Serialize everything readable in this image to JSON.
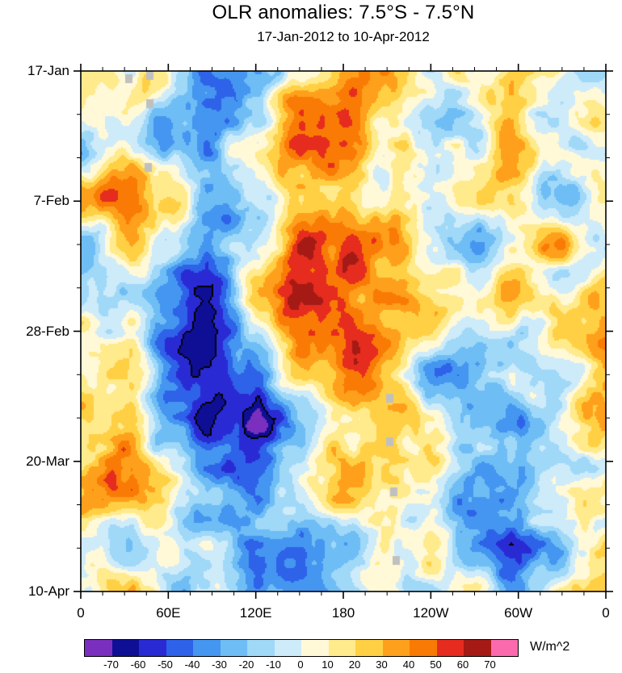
{
  "chart": {
    "title": "OLR anomalies: 7.5°S - 7.5°N",
    "subtitle": "17-Jan-2012 to 10-Apr-2012",
    "units_label": "W/m^2"
  },
  "chart_data": {
    "type": "heatmap",
    "title": "OLR anomalies: 7.5°S - 7.5°N",
    "subtitle": "17-Jan-2012 to 10-Apr-2012",
    "x_axis": {
      "label_ticks": [
        "0",
        "60E",
        "120E",
        "180",
        "120W",
        "60W",
        "0"
      ],
      "range_deg": [
        0,
        360
      ],
      "minor_tick_every_deg": 15
    },
    "y_axis": {
      "label_ticks": [
        "17-Jan",
        "7-Feb",
        "28-Feb",
        "20-Mar",
        "10-Apr"
      ],
      "range_days": [
        0,
        84
      ],
      "minor_tick_every_days": 7
    },
    "colorbar": {
      "levels": [
        -70,
        -60,
        -50,
        -40,
        -30,
        -20,
        -10,
        0,
        10,
        20,
        30,
        40,
        50,
        60,
        70
      ],
      "labels": [
        "-70",
        "-60",
        "-50",
        "-40",
        "-30",
        "-20",
        "-10",
        "0",
        "10",
        "20",
        "30",
        "40",
        "50",
        "60",
        "70"
      ],
      "colors": [
        "#7B2FBE",
        "#0F0F96",
        "#2A2AD4",
        "#2E62E8",
        "#4596F0",
        "#6FBDF5",
        "#A0D8F8",
        "#CEEBFA",
        "#FFF9D8",
        "#FFEA8C",
        "#FFD044",
        "#FFA01C",
        "#F97B06",
        "#E62C1E",
        "#A51A15",
        "#FC6AAE"
      ],
      "units": "W/m^2",
      "missing_color": "#C0C0C0"
    },
    "grid": {
      "comment_units": "W/m^2, values estimated from shading",
      "lons_deg": [
        0,
        30,
        60,
        90,
        120,
        150,
        180,
        210,
        240,
        270,
        300,
        330,
        360
      ],
      "times_days": [
        0,
        7,
        14,
        21,
        28,
        35,
        42,
        49,
        56,
        63,
        70,
        77,
        84
      ],
      "values": [
        [
          20,
          -10,
          10,
          -25,
          -30,
          30,
          45,
          15,
          -10,
          -10,
          15,
          -20,
          20
        ],
        [
          30,
          10,
          -20,
          -40,
          -20,
          40,
          50,
          20,
          -20,
          -15,
          25,
          -10,
          10
        ],
        [
          -10,
          20,
          -10,
          -30,
          10,
          45,
          40,
          20,
          -10,
          -20,
          30,
          10,
          -10
        ],
        [
          20,
          30,
          10,
          -25,
          -10,
          40,
          35,
          10,
          -25,
          -10,
          25,
          -15,
          15
        ],
        [
          -20,
          15,
          -10,
          -30,
          20,
          55,
          45,
          15,
          -15,
          -30,
          -10,
          20,
          -10
        ],
        [
          10,
          -20,
          -40,
          -50,
          10,
          50,
          40,
          20,
          -10,
          -20,
          15,
          -25,
          10
        ],
        [
          25,
          -10,
          -55,
          -65,
          -30,
          35,
          45,
          25,
          10,
          -15,
          -20,
          15,
          20
        ],
        [
          15,
          20,
          -45,
          -60,
          -40,
          20,
          35,
          20,
          -10,
          -25,
          10,
          -10,
          10
        ],
        [
          30,
          25,
          -30,
          -50,
          -45,
          -10,
          25,
          30,
          15,
          -20,
          -15,
          20,
          25
        ],
        [
          -10,
          30,
          -20,
          -40,
          -50,
          -20,
          15,
          25,
          20,
          -10,
          -25,
          -10,
          -15
        ],
        [
          20,
          15,
          10,
          -30,
          -45,
          -30,
          20,
          15,
          -15,
          -30,
          -20,
          15,
          20
        ],
        [
          15,
          -15,
          25,
          10,
          -50,
          -40,
          -10,
          20,
          10,
          -20,
          -35,
          -10,
          15
        ],
        [
          20,
          25,
          -10,
          15,
          -30,
          -45,
          -20,
          10,
          -10,
          15,
          -25,
          10,
          20
        ]
      ]
    },
    "missing_cells": [
      {
        "lon_frac": 0.09,
        "t_frac": 0.014
      },
      {
        "lon_frac": 0.131,
        "t_frac": 0.008
      },
      {
        "lon_frac": 0.131,
        "t_frac": 0.062
      },
      {
        "lon_frac": 0.128,
        "t_frac": 0.185
      },
      {
        "lon_frac": 0.588,
        "t_frac": 0.628
      },
      {
        "lon_frac": 0.588,
        "t_frac": 0.712
      },
      {
        "lon_frac": 0.595,
        "t_frac": 0.808
      },
      {
        "lon_frac": 0.6,
        "t_frac": 0.94
      }
    ]
  }
}
